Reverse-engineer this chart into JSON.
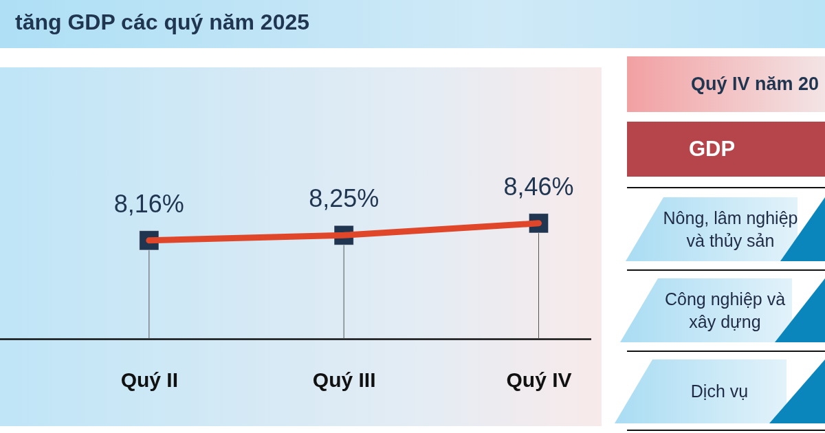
{
  "chart_data": [
    {
      "type": "line",
      "title": "tăng GDP các quý năm 2025",
      "categories": [
        null,
        "Quý II",
        "Quý III",
        "Quý IV"
      ],
      "marker": "square",
      "series": [
        {
          "color": "#e0472a",
          "values": [
            null,
            8.16,
            8.25,
            8.46
          ],
          "value_labels": [
            null,
            "8,16%",
            "8,25%",
            "8,46%"
          ]
        }
      ]
    },
    {
      "type": "other",
      "annotations": [
        "Quý IV năm 20",
        "GDP",
        "Nông, lâm nghiệp và thủy sản",
        "Công nghiệp và xây dựng",
        "Dịch vụ"
      ]
    }
  ]
}
